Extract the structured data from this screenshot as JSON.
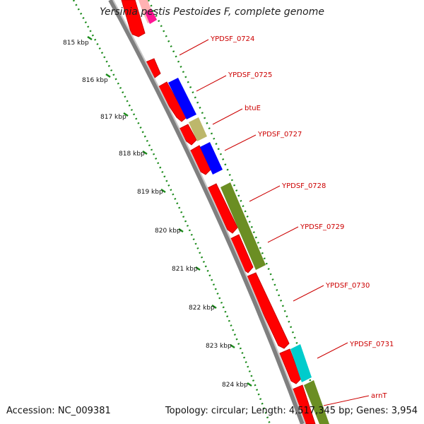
{
  "title": "Yersinia pestis Pestoides F, complete genome",
  "accession": "Accession: NC_009381",
  "summary": "Topology: circular; Length: 4,517,345 bp; Genes: 3,954",
  "kbp_labels": [
    "815 kbp",
    "816 kbp",
    "817 kbp",
    "818 kbp",
    "819 kbp",
    "820 kbp",
    "821 kbp",
    "822 kbp",
    "823 kbp",
    "824 kbp"
  ],
  "gene_labels": [
    "YPDSF_0724",
    "YPDSF_0725",
    "btuE",
    "YPDSF_0727",
    "YPDSF_0728",
    "YPDSF_0729",
    "YPDSF_0730",
    "YPDSF_0731",
    "arnT"
  ],
  "colors": {
    "cds_reverse": "#ff0000",
    "blue_feature": "#0000ff",
    "olive_feature": "#6b8e23",
    "khaki_feature": "#bdb76b",
    "cyan_feature": "#00cccc",
    "pink_feature": "#ff1493",
    "tick_green": "#1a8a1a",
    "backbone": "#808080",
    "label_red": "#cc0000"
  }
}
